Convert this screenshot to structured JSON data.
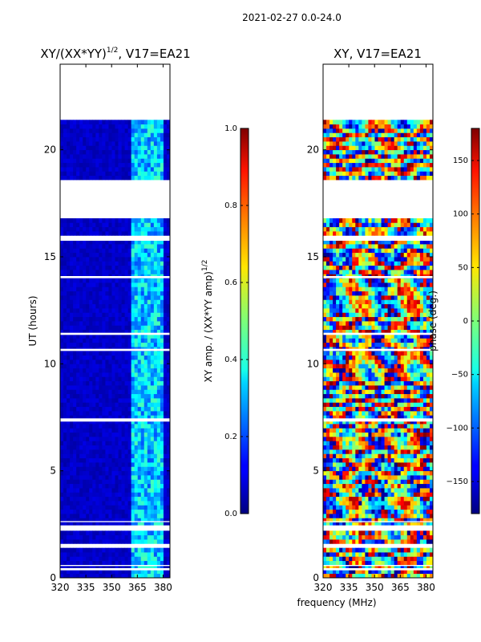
{
  "header": "2021-02-27 0.0-24.0",
  "chart_data": [
    {
      "type": "heatmap",
      "title_main": "XY/(XX*YY)",
      "title_sup": "1/2",
      "title_tail": ", V17=EA21",
      "xlabel": "frequency (MHz)",
      "ylabel": "UT (hours)",
      "xlim": [
        320,
        384
      ],
      "ylim": [
        0,
        24
      ],
      "xticks": [
        "320",
        "335",
        "350",
        "365",
        "380"
      ],
      "xtick_values": [
        320,
        335,
        350,
        365,
        380
      ],
      "yticks": [
        "0",
        "5",
        "10",
        "15",
        "20"
      ],
      "ytick_values": [
        0,
        5,
        10,
        15,
        20
      ],
      "data_gaps_hours": [
        [
          0.35,
          0.45
        ],
        [
          0.55,
          0.6
        ],
        [
          1.45,
          1.55
        ],
        [
          2.3,
          2.45
        ],
        [
          2.6,
          2.65
        ],
        [
          7.3,
          7.45
        ],
        [
          10.6,
          10.7
        ],
        [
          11.35,
          11.45
        ],
        [
          14.0,
          14.1
        ],
        [
          15.75,
          15.95
        ],
        [
          16.8,
          18.55
        ],
        [
          21.45,
          24.0
        ]
      ],
      "value_range": [
        0.0,
        1.0
      ],
      "colormap": "jet"
    },
    {
      "type": "heatmap",
      "title": "XY, V17=EA21",
      "xlabel": "frequency (MHz)",
      "xlim": [
        320,
        384
      ],
      "ylim": [
        0,
        24
      ],
      "xticks": [
        "320",
        "335",
        "350",
        "365",
        "380"
      ],
      "xtick_values": [
        320,
        335,
        350,
        365,
        380
      ],
      "yticks": [
        "0",
        "5",
        "10",
        "15",
        "20"
      ],
      "ytick_values": [
        0,
        5,
        10,
        15,
        20
      ],
      "data_gaps_hours": [
        [
          0.35,
          0.45
        ],
        [
          0.55,
          0.6
        ],
        [
          1.45,
          1.55
        ],
        [
          2.3,
          2.45
        ],
        [
          2.6,
          2.65
        ],
        [
          7.3,
          7.45
        ],
        [
          10.6,
          10.7
        ],
        [
          11.35,
          11.45
        ],
        [
          14.0,
          14.1
        ],
        [
          15.75,
          15.95
        ],
        [
          16.8,
          18.55
        ],
        [
          21.45,
          24.0
        ]
      ],
      "value_range": [
        -180,
        180
      ],
      "colormap": "jet"
    }
  ],
  "colorbars": [
    {
      "label_main": "XY amp. / (XX*YY amp)",
      "label_sup": "1/2",
      "ticks": [
        "0.0",
        "0.2",
        "0.4",
        "0.6",
        "0.8",
        "1.0"
      ],
      "tick_values": [
        0.0,
        0.2,
        0.4,
        0.6,
        0.8,
        1.0
      ],
      "range": [
        0.0,
        1.0
      ]
    },
    {
      "label": "phase (deg.)",
      "ticks": [
        "−150",
        "−100",
        "−50",
        "0",
        "50",
        "100",
        "150"
      ],
      "tick_values": [
        -150,
        -100,
        -50,
        0,
        50,
        100,
        150
      ],
      "range": [
        -180,
        180
      ]
    }
  ],
  "footer_xlabel": "frequency (MHz)"
}
